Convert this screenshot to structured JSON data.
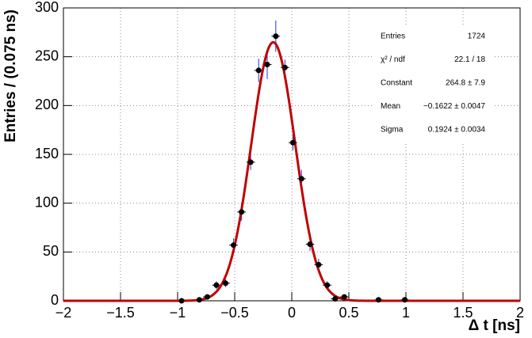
{
  "chart_data": {
    "type": "histogram-fit",
    "x_label": "Δ t [ns]",
    "y_label": "Entries / (0.075 ns)",
    "xlim": [
      -2,
      2
    ],
    "ylim": [
      0,
      300
    ],
    "xticks": [
      {
        "value": -2,
        "label": "−2"
      },
      {
        "value": -1.5,
        "label": "−1.5"
      },
      {
        "value": -1,
        "label": "−1"
      },
      {
        "value": -0.5,
        "label": "−0.5"
      },
      0,
      0.5,
      1,
      1.5,
      2
    ],
    "yticks": [
      0,
      50,
      100,
      150,
      200,
      250,
      300
    ],
    "grid": true,
    "x": [
      -0.965,
      -0.81,
      -0.74,
      -0.66,
      -0.58,
      -0.51,
      -0.44,
      -0.36,
      -0.29,
      -0.215,
      -0.14,
      -0.06,
      0.01,
      0.085,
      0.16,
      0.235,
      0.31,
      0.38,
      0.46,
      0.76,
      0.99
    ],
    "values": [
      0,
      1,
      4,
      16,
      18,
      57,
      91,
      142,
      236,
      242,
      271,
      239,
      162,
      125,
      58,
      37,
      16,
      2,
      4,
      1,
      1
    ],
    "errors": [
      1,
      1,
      2,
      4,
      4,
      7,
      9,
      8,
      12,
      15,
      16,
      8,
      8,
      9,
      7,
      6,
      4,
      1,
      2,
      1,
      1
    ],
    "xerr": 0.0375,
    "marker_color": "#000000",
    "error_color": "#2233cc",
    "fit": {
      "constant": 264.8,
      "mean": -0.1622,
      "sigma": 0.1924,
      "color": "#c00000"
    },
    "stats": [
      {
        "label": "Entries",
        "value": "1724"
      },
      {
        "label": "χ² / ndf",
        "value": "22.1 / 18"
      },
      {
        "label": "Constant",
        "value": "264.8 ± 7.9"
      },
      {
        "label": "Mean",
        "value": "−0.1622 ± 0.0047"
      },
      {
        "label": "Sigma",
        "value": "0.1924 ± 0.0034"
      }
    ]
  }
}
